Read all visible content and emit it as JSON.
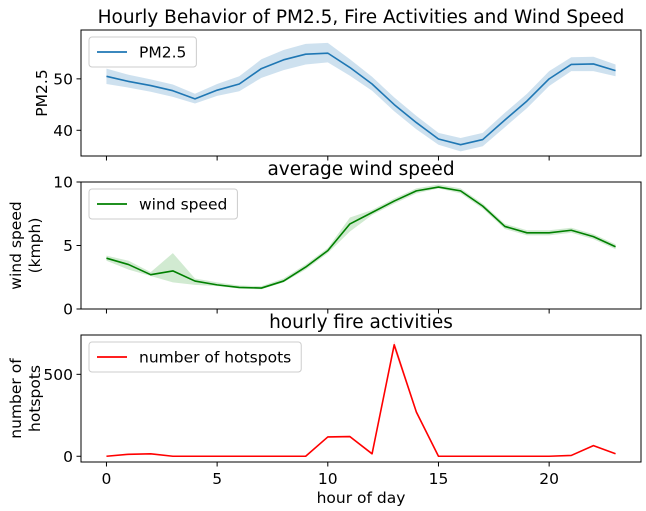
{
  "chart_data": [
    {
      "type": "line",
      "title": "Hourly Behavior of PM2.5, Fire Activities and Wind Speed",
      "xlabel": "",
      "ylabel": "PM2.5",
      "xlim": [
        -1.15,
        24.15
      ],
      "ylim": [
        35,
        59.5
      ],
      "yticks": [
        40,
        50
      ],
      "xticks": [
        0,
        5,
        10,
        15,
        20
      ],
      "xtick_labels_visible": false,
      "legend": {
        "position": "top-left"
      },
      "colors": {
        "line": "#1f77b4",
        "band": "#1f77b4"
      },
      "series": [
        {
          "name": "PM2.5",
          "x": [
            0,
            1,
            2,
            3,
            4,
            5,
            6,
            7,
            8,
            9,
            10,
            11,
            12,
            13,
            14,
            15,
            16,
            17,
            18,
            19,
            20,
            21,
            22,
            23
          ],
          "values": [
            50.5,
            49.5,
            48.7,
            47.7,
            46.1,
            47.8,
            49.0,
            52.0,
            53.7,
            54.8,
            55.0,
            52.2,
            49.0,
            45.0,
            41.5,
            38.3,
            37.2,
            38.2,
            42.0,
            45.7,
            50.0,
            52.8,
            52.9,
            51.6
          ],
          "lower": [
            49.0,
            48.3,
            47.5,
            46.5,
            45.2,
            46.7,
            47.6,
            50.2,
            51.7,
            52.8,
            53.2,
            50.6,
            47.7,
            43.7,
            40.2,
            37.2,
            35.9,
            36.9,
            40.6,
            44.3,
            48.6,
            51.5,
            51.5,
            50.5
          ],
          "upper": [
            52.0,
            50.8,
            49.9,
            48.9,
            47.1,
            49.0,
            50.5,
            53.8,
            55.6,
            56.8,
            57.0,
            53.8,
            50.4,
            46.4,
            42.8,
            39.5,
            38.5,
            39.5,
            43.4,
            47.1,
            51.5,
            54.2,
            54.3,
            52.8
          ]
        }
      ]
    },
    {
      "type": "line",
      "title": "average wind speed",
      "xlabel": "",
      "ylabel": "wind speed\n(kmph)",
      "xlim": [
        -1.15,
        24.15
      ],
      "ylim": [
        0,
        10
      ],
      "yticks": [
        0,
        5,
        10
      ],
      "xticks": [
        0,
        5,
        10,
        15,
        20
      ],
      "xtick_labels_visible": false,
      "legend": {
        "position": "top-left"
      },
      "colors": {
        "line": "#008000",
        "band": "#2ca02c"
      },
      "series": [
        {
          "name": "wind speed",
          "x": [
            0,
            1,
            2,
            3,
            4,
            5,
            6,
            7,
            8,
            9,
            10,
            11,
            12,
            13,
            14,
            15,
            16,
            17,
            18,
            19,
            20,
            21,
            22,
            23
          ],
          "values": [
            4.0,
            3.5,
            2.7,
            3.0,
            2.2,
            1.9,
            1.7,
            1.65,
            2.2,
            3.3,
            4.6,
            6.7,
            7.6,
            8.5,
            9.3,
            9.6,
            9.3,
            8.1,
            6.5,
            6.0,
            6.0,
            6.2,
            5.7,
            4.9
          ],
          "lower": [
            3.8,
            3.1,
            2.6,
            2.1,
            1.9,
            1.8,
            1.6,
            1.55,
            2.1,
            3.1,
            4.4,
            6.1,
            7.4,
            8.3,
            9.1,
            9.5,
            9.1,
            7.9,
            6.3,
            5.8,
            5.8,
            6.0,
            5.5,
            4.7
          ],
          "upper": [
            4.2,
            3.8,
            2.9,
            4.4,
            2.4,
            2.1,
            1.85,
            1.8,
            2.4,
            3.5,
            4.8,
            7.2,
            7.8,
            8.7,
            9.5,
            9.8,
            9.5,
            8.3,
            6.7,
            6.2,
            6.2,
            6.4,
            5.9,
            5.1
          ]
        }
      ]
    },
    {
      "type": "line",
      "title": "hourly fire activities",
      "xlabel": "hour of day",
      "ylabel": "number of\nhotspots",
      "xlim": [
        -1.15,
        24.15
      ],
      "ylim": [
        -35,
        740
      ],
      "yticks": [
        0,
        500
      ],
      "xticks": [
        0,
        5,
        10,
        15,
        20
      ],
      "xtick_labels_visible": true,
      "legend": {
        "position": "top-left"
      },
      "colors": {
        "line": "#ff0000",
        "band": "#ff6666"
      },
      "series": [
        {
          "name": "number of hotspots",
          "x": [
            0,
            1,
            2,
            3,
            4,
            5,
            6,
            7,
            8,
            9,
            10,
            11,
            12,
            13,
            14,
            15,
            16,
            17,
            18,
            19,
            20,
            21,
            22,
            23
          ],
          "values": [
            0,
            12,
            15,
            0,
            0,
            0,
            0,
            0,
            0,
            0,
            118,
            120,
            15,
            680,
            270,
            0,
            0,
            0,
            0,
            0,
            0,
            5,
            65,
            15
          ],
          "lower": [
            0,
            11,
            14,
            0,
            0,
            0,
            0,
            0,
            0,
            0,
            112,
            114,
            13,
            655,
            258,
            0,
            0,
            0,
            0,
            0,
            0,
            4,
            61,
            13
          ],
          "upper": [
            0,
            13,
            16,
            0,
            0,
            0,
            0,
            0,
            0,
            0,
            124,
            126,
            17,
            705,
            282,
            0,
            0,
            0,
            0,
            0,
            0,
            6,
            69,
            17
          ]
        }
      ]
    }
  ]
}
